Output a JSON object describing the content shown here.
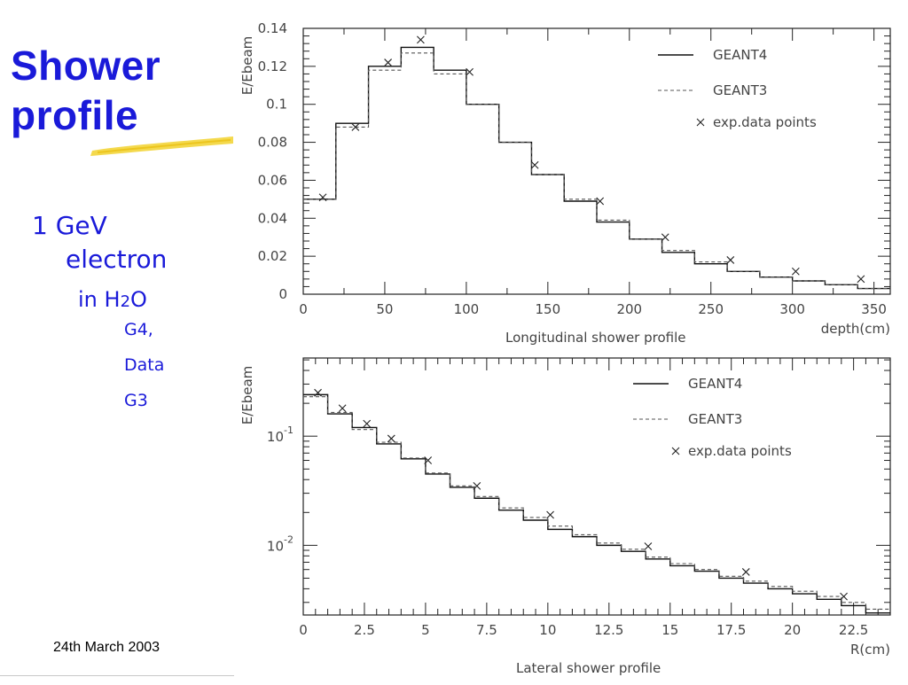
{
  "slide": {
    "title_line1": "Shower",
    "title_line2": "profile",
    "bullet1_line1": "1 GeV",
    "bullet1_line2": "electron",
    "bullet2_prefix": "in H",
    "bullet2_sub": "2",
    "bullet2_suffix": "O",
    "bullet3": [
      "G4,",
      "Data",
      "G3"
    ],
    "date": "24th March 2003",
    "colors": {
      "title": "#1a1ad9",
      "highlight": "#f2d22e"
    }
  },
  "chart_data": [
    {
      "type": "line",
      "title": "Longitudinal shower profile",
      "xlabel": "depth(cm)",
      "ylabel": "E/Ebeam",
      "xlim": [
        0,
        360
      ],
      "ylim": [
        0,
        0.14
      ],
      "xticks": [
        "0",
        "50",
        "100",
        "150",
        "200",
        "250",
        "300",
        "350"
      ],
      "yticks": [
        "0",
        "0.02",
        "0.04",
        "0.06",
        "0.08",
        "0.1",
        "0.12",
        "0.14"
      ],
      "legend_position": "top-right",
      "legend": [
        "GEANT4",
        "GEANT3",
        "exp.data points"
      ],
      "bin_edges": [
        0,
        20,
        40,
        60,
        80,
        100,
        120,
        140,
        160,
        180,
        200,
        220,
        240,
        260,
        280,
        300,
        320,
        340,
        360
      ],
      "series": [
        {
          "name": "GEANT4",
          "style": "solid step",
          "values": [
            0.05,
            0.09,
            0.12,
            0.13,
            0.118,
            0.1,
            0.08,
            0.063,
            0.049,
            0.038,
            0.029,
            0.022,
            0.016,
            0.012,
            0.009,
            0.007,
            0.005,
            0.003
          ]
        },
        {
          "name": "GEANT3",
          "style": "dashed step",
          "values": [
            0.05,
            0.088,
            0.118,
            0.127,
            0.116,
            0.1,
            0.08,
            0.063,
            0.05,
            0.039,
            0.029,
            0.023,
            0.017,
            0.012,
            0.009,
            0.007,
            0.005,
            0.003
          ]
        },
        {
          "name": "exp.data points",
          "style": "marker x",
          "x": [
            12,
            32,
            52,
            72,
            102,
            142,
            182,
            222,
            262,
            302,
            342
          ],
          "y": [
            0.051,
            0.088,
            0.122,
            0.134,
            0.117,
            0.068,
            0.049,
            0.03,
            0.018,
            0.012,
            0.008
          ]
        }
      ]
    },
    {
      "type": "line",
      "title": "Lateral shower profile",
      "xlabel": "R(cm)",
      "ylabel": "E/Ebeam",
      "xlim": [
        0,
        24
      ],
      "yscale": "log",
      "ylim": [
        0.0023,
        0.52
      ],
      "xticks": [
        "0",
        "2.5",
        "5",
        "7.5",
        "10",
        "12.5",
        "15",
        "17.5",
        "20",
        "22.5"
      ],
      "yticks": [
        "10^-1",
        "10^-2"
      ],
      "legend_position": "top-right",
      "legend": [
        "GEANT4",
        "GEANT3",
        "exp.data points"
      ],
      "bin_width": 1,
      "series": [
        {
          "name": "GEANT4",
          "style": "solid step",
          "values": [
            0.24,
            0.16,
            0.12,
            0.085,
            0.062,
            0.045,
            0.034,
            0.027,
            0.021,
            0.017,
            0.014,
            0.012,
            0.01,
            0.0088,
            0.0075,
            0.0065,
            0.0058,
            0.005,
            0.0045,
            0.004,
            0.0036,
            0.0032,
            0.0028,
            0.0024
          ]
        },
        {
          "name": "GEANT3",
          "style": "dashed step",
          "values": [
            0.23,
            0.165,
            0.115,
            0.088,
            0.063,
            0.046,
            0.035,
            0.028,
            0.022,
            0.018,
            0.015,
            0.0125,
            0.0105,
            0.0092,
            0.0078,
            0.0068,
            0.006,
            0.0052,
            0.0047,
            0.0042,
            0.0038,
            0.0034,
            0.003,
            0.0026
          ]
        },
        {
          "name": "exp.data points",
          "style": "marker x",
          "x": [
            0.6,
            1.6,
            2.6,
            3.6,
            5.1,
            7.1,
            10.1,
            14.1,
            18.1,
            22.1
          ],
          "y": [
            0.25,
            0.18,
            0.13,
            0.095,
            0.06,
            0.035,
            0.019,
            0.0098,
            0.0057,
            0.0034
          ]
        }
      ]
    }
  ]
}
